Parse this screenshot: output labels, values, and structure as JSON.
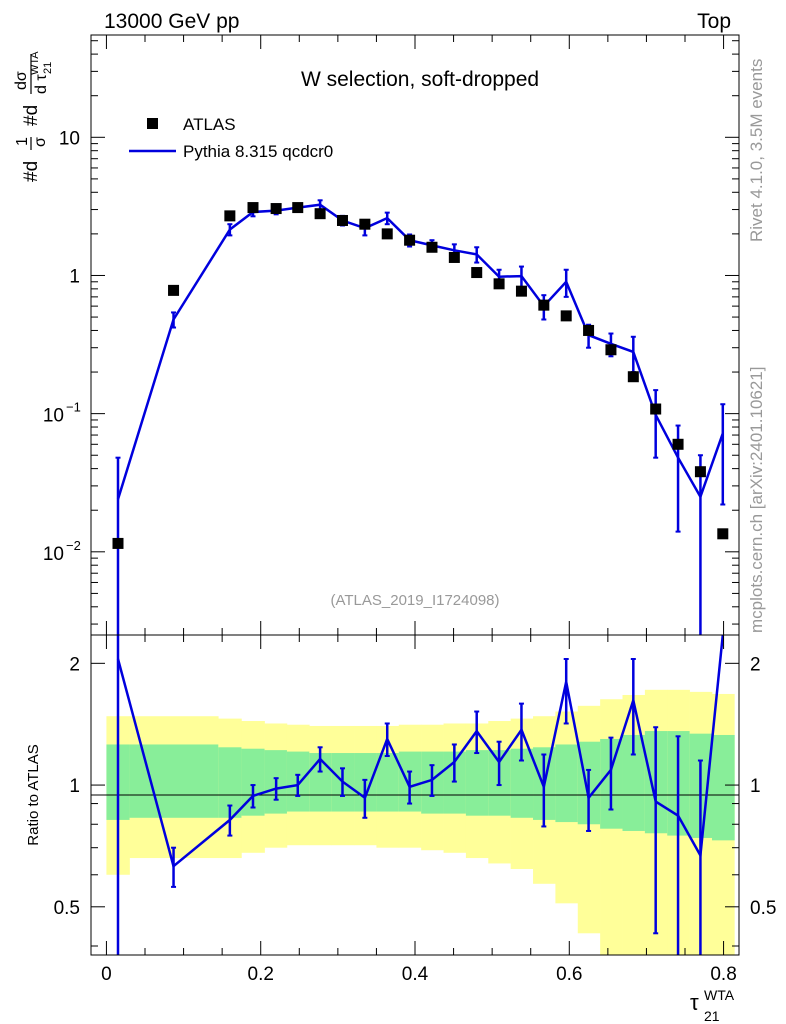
{
  "header": {
    "left": "13000 GeV pp",
    "right": "Top"
  },
  "side": {
    "rivet": "Rivet 4.1.0,  3.5M events",
    "source": "mcplots.cern.ch [arXiv:2401.10621]"
  },
  "colors": {
    "mc": "#0000dd",
    "band_inner": "#88ee99",
    "band_outer": "#ffff99",
    "data": "#000000"
  },
  "chart_data": [
    {
      "type": "scatter",
      "panel": "main",
      "title": "W selection, soft-dropped",
      "watermark": "(ATLAS_2019_I1724098)",
      "ylabel": "#d1/σ #d dσ/d τ21WTA",
      "ylabel_parts": {
        "a": "#d",
        "b": "1",
        "c": "σ",
        "d": "#d",
        "e": "dσ",
        "f": "d τ",
        "g": "WTA",
        "h": "21"
      },
      "yscale": "log",
      "ylim": [
        0.0025,
        55
      ],
      "xlim": [
        -0.02,
        0.82
      ],
      "yticks": [
        {
          "v": 0.01,
          "base": "10",
          "exp": "−2"
        },
        {
          "v": 0.1,
          "base": "10",
          "exp": "−1"
        },
        {
          "v": 1,
          "base": "1",
          "exp": ""
        },
        {
          "v": 10,
          "base": "10",
          "exp": ""
        }
      ],
      "legend": [
        {
          "label": "ATLAS",
          "kind": "marker"
        },
        {
          "label": "Pythia 8.315 qcdcr0",
          "kind": "line"
        }
      ],
      "series": [
        {
          "name": "ATLAS",
          "x": [
            0.015,
            0.087,
            0.16,
            0.19,
            0.22,
            0.248,
            0.277,
            0.306,
            0.335,
            0.364,
            0.393,
            0.422,
            0.451,
            0.48,
            0.509,
            0.538,
            0.567,
            0.596,
            0.625,
            0.654,
            0.683,
            0.712,
            0.741,
            0.77,
            0.799
          ],
          "y": [
            0.0115,
            0.78,
            2.7,
            3.1,
            3.05,
            3.1,
            2.8,
            2.5,
            2.35,
            2.0,
            1.8,
            1.6,
            1.35,
            1.05,
            0.87,
            0.77,
            0.61,
            0.51,
            0.4,
            0.29,
            0.185,
            0.108,
            0.06,
            0.038,
            0.0135
          ]
        },
        {
          "name": "Pythia 8.315 qcdcr0",
          "x": [
            0.015,
            0.087,
            0.16,
            0.19,
            0.22,
            0.248,
            0.277,
            0.306,
            0.335,
            0.364,
            0.393,
            0.422,
            0.451,
            0.48,
            0.509,
            0.538,
            0.567,
            0.596,
            0.625,
            0.654,
            0.683,
            0.712,
            0.741,
            0.77,
            0.799
          ],
          "y": [
            0.024,
            0.48,
            2.15,
            2.88,
            2.95,
            3.1,
            3.25,
            2.5,
            2.2,
            2.6,
            1.8,
            1.65,
            1.52,
            1.42,
            0.98,
            0.99,
            0.6,
            0.9,
            0.37,
            0.32,
            0.28,
            0.098,
            0.048,
            0.025,
            0.072
          ],
          "yerr_lo": [
            0.0238,
            0.06,
            0.2,
            0.2,
            0.18,
            0.18,
            0.25,
            0.2,
            0.25,
            0.25,
            0.18,
            0.15,
            0.16,
            0.18,
            0.12,
            0.17,
            0.12,
            0.2,
            0.07,
            0.06,
            0.08,
            0.05,
            0.034,
            0.0249,
            0.05
          ],
          "yerr_hi": [
            0.024,
            0.06,
            0.2,
            0.2,
            0.18,
            0.18,
            0.25,
            0.2,
            0.25,
            0.25,
            0.18,
            0.15,
            0.16,
            0.18,
            0.12,
            0.17,
            0.12,
            0.2,
            0.07,
            0.06,
            0.08,
            0.05,
            0.034,
            0.025,
            0.045
          ]
        }
      ]
    },
    {
      "type": "line",
      "panel": "ratio",
      "ylabel": "Ratio to ATLAS",
      "xlabel": "τ21WTA",
      "xlabel_parts": {
        "base": "τ",
        "sup": "WTA",
        "sub": "21"
      },
      "yscale": "log",
      "ylim": [
        0.38,
        2.35
      ],
      "xlim": [
        -0.02,
        0.82
      ],
      "xticks": [
        {
          "v": 0,
          "label": "0"
        },
        {
          "v": 0.2,
          "label": "0.2"
        },
        {
          "v": 0.4,
          "label": "0.4"
        },
        {
          "v": 0.6,
          "label": "0.6"
        },
        {
          "v": 0.8,
          "label": "0.8"
        }
      ],
      "yticks": [
        {
          "v": 0.5,
          "label": "0.5"
        },
        {
          "v": 1,
          "label": "1"
        },
        {
          "v": 2,
          "label": "2"
        }
      ],
      "bands": {
        "edges": [
          0.0,
          0.03,
          0.145,
          0.175,
          0.205,
          0.234,
          0.263,
          0.292,
          0.321,
          0.35,
          0.379,
          0.408,
          0.437,
          0.466,
          0.495,
          0.524,
          0.553,
          0.582,
          0.611,
          0.64,
          0.669,
          0.698,
          0.727,
          0.756,
          0.785,
          0.814
        ],
        "inner_lo": [
          0.82,
          0.83,
          0.83,
          0.84,
          0.85,
          0.86,
          0.86,
          0.86,
          0.86,
          0.86,
          0.86,
          0.85,
          0.85,
          0.84,
          0.84,
          0.83,
          0.82,
          0.81,
          0.8,
          0.78,
          0.77,
          0.76,
          0.75,
          0.74,
          0.73
        ],
        "inner_hi": [
          1.26,
          1.26,
          1.24,
          1.23,
          1.22,
          1.21,
          1.2,
          1.2,
          1.2,
          1.2,
          1.21,
          1.21,
          1.21,
          1.22,
          1.22,
          1.23,
          1.24,
          1.26,
          1.28,
          1.3,
          1.33,
          1.36,
          1.36,
          1.34,
          1.33
        ],
        "outer_lo": [
          0.6,
          0.66,
          0.66,
          0.68,
          0.7,
          0.71,
          0.71,
          0.71,
          0.71,
          0.7,
          0.7,
          0.69,
          0.68,
          0.66,
          0.64,
          0.62,
          0.57,
          0.51,
          0.43,
          0.35,
          0.33,
          0.33,
          0.33,
          0.33,
          0.35
        ],
        "outer_hi": [
          1.48,
          1.48,
          1.46,
          1.44,
          1.42,
          1.41,
          1.4,
          1.4,
          1.4,
          1.4,
          1.41,
          1.41,
          1.42,
          1.42,
          1.44,
          1.46,
          1.48,
          1.52,
          1.57,
          1.63,
          1.67,
          1.72,
          1.72,
          1.7,
          1.68
        ]
      },
      "series": [
        {
          "name": "Pythia 8.315 qcdcr0 / ATLAS",
          "x": [
            0.015,
            0.087,
            0.16,
            0.19,
            0.22,
            0.248,
            0.277,
            0.306,
            0.335,
            0.364,
            0.393,
            0.422,
            0.451,
            0.48,
            0.509,
            0.538,
            0.567,
            0.596,
            0.625,
            0.654,
            0.683,
            0.712,
            0.741,
            0.77,
            0.799
          ],
          "y": [
            2.05,
            0.63,
            0.82,
            0.94,
            0.98,
            1.0,
            1.16,
            1.02,
            0.93,
            1.3,
            0.99,
            1.03,
            1.14,
            1.36,
            1.14,
            1.37,
            0.99,
            1.8,
            0.93,
            1.09,
            1.62,
            0.91,
            0.84,
            0.67,
            2.4
          ],
          "yerr_lo": [
            1.7,
            0.07,
            0.07,
            0.06,
            0.06,
            0.06,
            0.08,
            0.08,
            0.1,
            0.12,
            0.09,
            0.09,
            0.12,
            0.16,
            0.14,
            0.22,
            0.2,
            0.38,
            0.16,
            0.22,
            0.43,
            0.48,
            0.48,
            0.33,
            0.0
          ],
          "yerr_hi": [
            1.7,
            0.07,
            0.07,
            0.06,
            0.06,
            0.06,
            0.08,
            0.08,
            0.1,
            0.12,
            0.09,
            0.09,
            0.12,
            0.16,
            0.14,
            0.22,
            0.2,
            0.25,
            0.16,
            0.22,
            0.43,
            0.48,
            0.48,
            0.48,
            0.0
          ]
        }
      ]
    }
  ]
}
